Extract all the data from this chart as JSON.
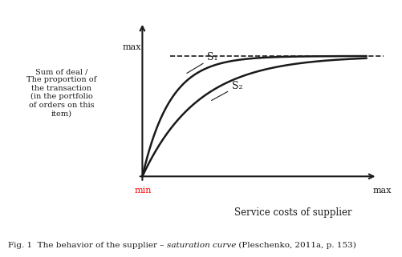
{
  "background_color": "#ffffff",
  "curve_color": "#1a1a1a",
  "dashed_line_color": "#1a1a1a",
  "axis_color": "#1a1a1a",
  "ylabel_text": "Sum of deal /\nThe proportion of\nthe transaction\n(in the portfolio\nof orders on this\nitem)",
  "xlabel_text": "Service costs of supplier",
  "y_max_label": "max",
  "x_min_label": "min",
  "x_max_label": "max",
  "s1_label": "S₁",
  "s2_label": "S₂",
  "cap_prefix": "Fig. 1  The behavior of the supplier – ",
  "cap_italic": "saturation curve",
  "cap_suffix": " (Pleschenko, 2011a, p. 153)",
  "saturation_level": 0.82,
  "k1": 8.0,
  "k2": 4.0
}
